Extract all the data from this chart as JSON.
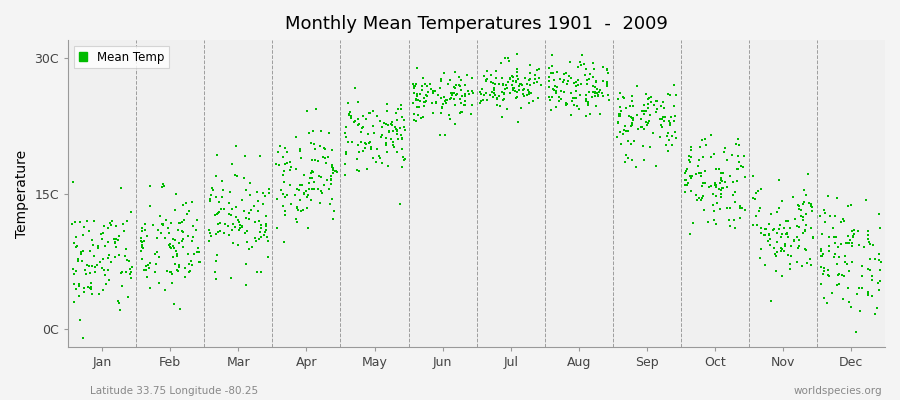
{
  "title": "Monthly Mean Temperatures 1901  -  2009",
  "ylabel": "Temperature",
  "subtitle_left": "Latitude 33.75 Longitude -80.25",
  "subtitle_right": "worldspecies.org",
  "legend_label": "Mean Temp",
  "marker_color": "#00bb00",
  "figure_bg_color": "#f4f4f4",
  "plot_bg_color": "#f0f0f0",
  "ytick_labels": [
    "0C",
    "15C",
    "30C"
  ],
  "ytick_values": [
    0,
    15,
    30
  ],
  "ylim": [
    -2,
    32
  ],
  "months": [
    "Jan",
    "Feb",
    "Mar",
    "Apr",
    "May",
    "Jun",
    "Jul",
    "Aug",
    "Sep",
    "Oct",
    "Nov",
    "Dec"
  ],
  "monthly_means": [
    7.5,
    9.0,
    12.5,
    17.0,
    21.5,
    25.5,
    27.0,
    26.5,
    23.0,
    16.5,
    11.0,
    8.0
  ],
  "monthly_stds": [
    3.2,
    3.2,
    2.8,
    2.8,
    2.2,
    1.4,
    1.4,
    1.5,
    2.2,
    2.8,
    2.8,
    3.2
  ],
  "n_years": 109,
  "seed": 42,
  "marker_size": 4
}
